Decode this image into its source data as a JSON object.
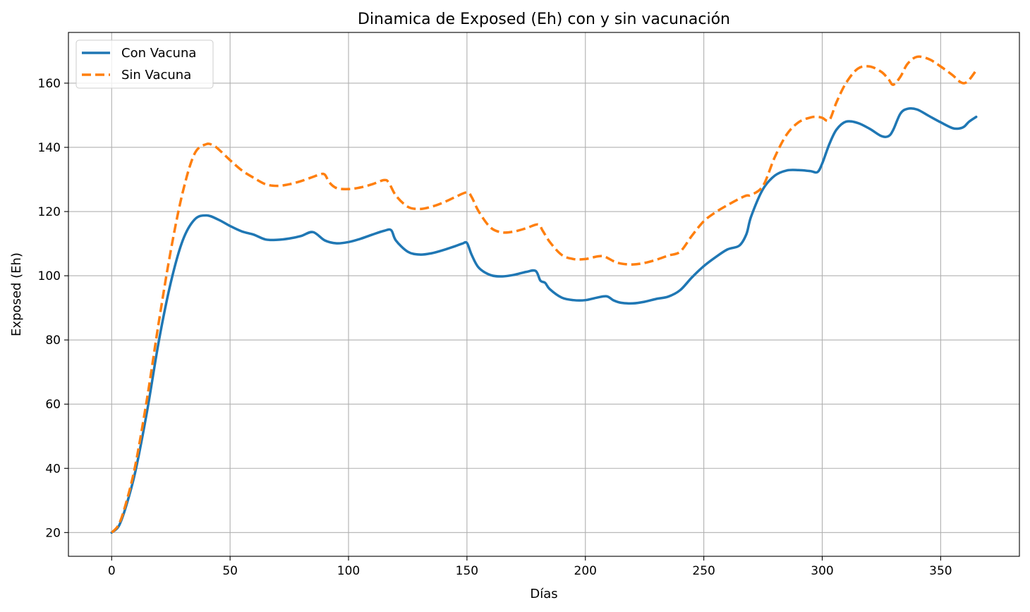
{
  "colors": {
    "con_vacuna": "#1f77b4",
    "sin_vacuna": "#ff7f0e",
    "grid": "#b0b0b0",
    "axes": "#000000"
  },
  "chart_data": {
    "type": "line",
    "title": "Dinamica de Exposed (Eh) con y sin vacunación",
    "xlabel": "Días",
    "ylabel": "Exposed (Eh)",
    "xlim": [
      -18.25,
      383.25
    ],
    "ylim": [
      12.6,
      175.8
    ],
    "xticks": [
      0,
      50,
      100,
      150,
      200,
      250,
      300,
      350
    ],
    "yticks": [
      20,
      40,
      60,
      80,
      100,
      120,
      140,
      160
    ],
    "grid": true,
    "legend_position": "upper left",
    "series": [
      {
        "name": "Con Vacuna",
        "style": "solid",
        "color": "#1f77b4",
        "x": [
          0,
          3,
          6,
          10,
          15,
          20,
          25,
          30,
          35,
          40,
          45,
          50,
          55,
          60,
          65,
          70,
          75,
          80,
          85,
          90,
          95,
          100,
          105,
          110,
          115,
          118,
          120,
          125,
          130,
          135,
          140,
          145,
          148,
          150,
          152,
          155,
          160,
          165,
          170,
          175,
          179,
          181,
          183,
          185,
          190,
          195,
          200,
          205,
          209,
          212,
          215,
          220,
          225,
          230,
          235,
          240,
          245,
          250,
          255,
          260,
          265,
          268,
          270,
          275,
          280,
          285,
          290,
          295,
          298,
          300,
          303,
          306,
          310,
          315,
          320,
          325,
          328,
          330,
          333,
          336,
          340,
          345,
          350,
          355,
          358,
          360,
          362,
          365
        ],
        "y": [
          20,
          22,
          28,
          39,
          58,
          80,
          98,
          111,
          117.5,
          118.8,
          117.5,
          115.5,
          113.8,
          112.8,
          111.3,
          111.2,
          111.6,
          112.4,
          113.6,
          111,
          110.1,
          110.5,
          111.5,
          112.8,
          114,
          114.2,
          111,
          107.5,
          106.6,
          107,
          108,
          109.2,
          110,
          110.2,
          106.5,
          102.5,
          100.2,
          99.8,
          100.3,
          101.2,
          101.5,
          98.5,
          97.8,
          95.8,
          93.2,
          92.4,
          92.4,
          93.2,
          93.6,
          92.3,
          91.6,
          91.4,
          91.9,
          92.8,
          93.5,
          95.5,
          99.5,
          103,
          105.8,
          108.2,
          109.4,
          113,
          118.5,
          127,
          131.2,
          132.8,
          132.9,
          132.6,
          132.3,
          135,
          141,
          145.5,
          148,
          147.6,
          145.8,
          143.5,
          143.5,
          145.5,
          150.5,
          152,
          151.8,
          149.8,
          147.8,
          146,
          145.9,
          146.5,
          148,
          149.5
        ]
      },
      {
        "name": "Sin Vacuna",
        "style": "dashed",
        "color": "#ff7f0e",
        "x": [
          0,
          3,
          6,
          10,
          15,
          20,
          25,
          30,
          35,
          40,
          43,
          45,
          50,
          55,
          60,
          65,
          70,
          75,
          80,
          85,
          88,
          90,
          92,
          95,
          100,
          105,
          110,
          115,
          117,
          120,
          125,
          130,
          135,
          140,
          145,
          150,
          152,
          155,
          160,
          165,
          170,
          175,
          180,
          182,
          185,
          190,
          195,
          200,
          205,
          208,
          212,
          215,
          220,
          225,
          230,
          235,
          240,
          245,
          250,
          255,
          260,
          265,
          268,
          270,
          275,
          280,
          285,
          290,
          295,
          298,
          300,
          303,
          306,
          310,
          315,
          320,
          325,
          328,
          330,
          333,
          336,
          340,
          345,
          350,
          355,
          358,
          360,
          362,
          365
        ],
        "y": [
          20,
          22.5,
          29,
          41,
          62,
          86,
          108,
          126,
          138,
          141,
          140.5,
          139.5,
          136,
          132.8,
          130.5,
          128.5,
          128,
          128.5,
          129.5,
          130.8,
          131.6,
          131.5,
          129,
          127.3,
          127,
          127.5,
          128.5,
          129.8,
          129,
          125,
          121.5,
          120.8,
          121.5,
          122.8,
          124.5,
          126,
          124.5,
          120,
          115,
          113.5,
          113.8,
          114.8,
          116,
          114,
          110.5,
          106.5,
          105.2,
          105.2,
          106,
          106,
          104.5,
          103.8,
          103.5,
          104,
          105,
          106.3,
          107.5,
          112.5,
          117,
          119.8,
          122,
          124,
          125,
          125.2,
          128,
          137,
          144,
          147.8,
          149.3,
          149.5,
          149.2,
          148.5,
          154,
          160,
          164.5,
          165.2,
          163.5,
          161.2,
          159.5,
          162,
          166,
          168.2,
          167.5,
          165.2,
          162.5,
          160.5,
          160,
          161,
          164
        ]
      }
    ]
  }
}
